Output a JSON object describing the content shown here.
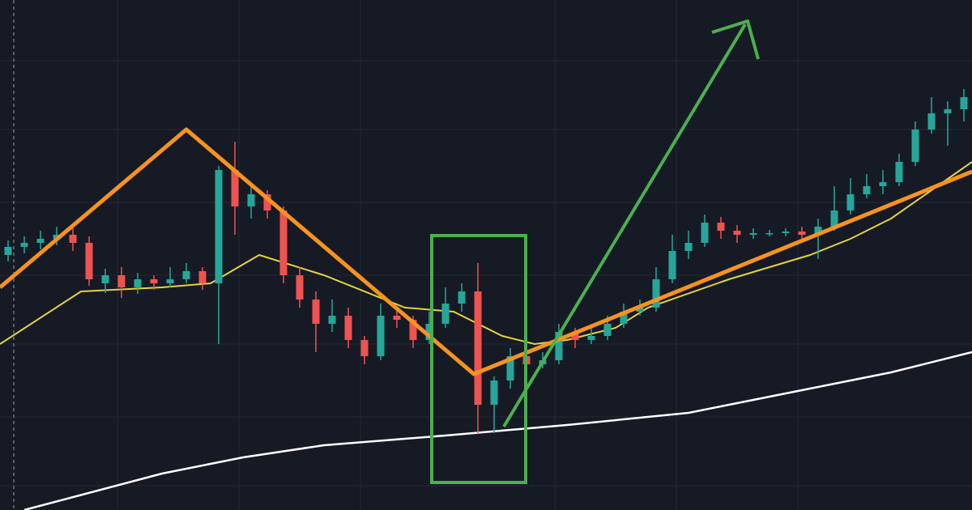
{
  "chart_data": {
    "type": "candlestick",
    "xlim": [
      -0.5,
      59.5
    ],
    "ylim": [
      0,
      630
    ],
    "xticks": [
      6.75,
      14.25,
      21.75,
      33.75,
      41.25,
      48.75
    ],
    "yticks": [
      30,
      115,
      205,
      290,
      380,
      470,
      555
    ],
    "grid": true,
    "up_color": "#26a69a",
    "down_color": "#ef5350",
    "open": [
      315,
      325,
      330,
      335,
      340,
      330,
      280,
      290,
      275,
      285,
      280,
      285,
      295,
      280,
      420,
      375,
      390,
      370,
      290,
      260,
      230,
      240,
      210,
      190,
      240,
      235,
      210,
      230,
      255,
      270,
      130,
      160,
      190,
      180,
      185,
      220,
      210,
      215,
      230,
      245,
      250,
      285,
      320,
      330,
      355,
      345,
      340,
      342,
      342,
      344,
      340,
      350,
      370,
      390,
      400,
      405,
      430,
      470,
      490,
      495
    ],
    "high": [
      333,
      338,
      345,
      350,
      348,
      338,
      298,
      300,
      293,
      290,
      300,
      305,
      300,
      425,
      455,
      400,
      395,
      375,
      300,
      270,
      260,
      250,
      215,
      255,
      250,
      240,
      245,
      275,
      280,
      305,
      165,
      200,
      205,
      195,
      230,
      225,
      225,
      240,
      255,
      260,
      300,
      340,
      345,
      365,
      362,
      352,
      348,
      346,
      348,
      350,
      360,
      400,
      410,
      415,
      420,
      440,
      480,
      510,
      505,
      520
    ],
    "low": [
      307,
      317,
      322,
      327,
      320,
      277,
      268,
      262,
      267,
      272,
      275,
      280,
      272,
      205,
      340,
      360,
      360,
      280,
      250,
      195,
      220,
      200,
      180,
      185,
      225,
      200,
      205,
      225,
      245,
      95,
      95,
      150,
      170,
      175,
      180,
      200,
      205,
      210,
      225,
      240,
      245,
      280,
      310,
      325,
      335,
      330,
      335,
      338,
      338,
      332,
      310,
      345,
      365,
      385,
      390,
      400,
      425,
      465,
      450,
      480
    ],
    "close": [
      325,
      330,
      335,
      340,
      330,
      285,
      290,
      275,
      285,
      280,
      285,
      295,
      280,
      420,
      375,
      390,
      370,
      290,
      260,
      230,
      240,
      210,
      190,
      240,
      235,
      210,
      230,
      255,
      270,
      130,
      160,
      190,
      180,
      185,
      220,
      210,
      215,
      230,
      245,
      250,
      285,
      320,
      330,
      355,
      345,
      340,
      342,
      342,
      344,
      340,
      350,
      370,
      390,
      400,
      405,
      430,
      470,
      490,
      495,
      510
    ],
    "series": [
      {
        "type": "line",
        "color": "#e3d33f",
        "x": [
          -0.5,
          4.5,
          9.5,
          12.5,
          15.5,
          19.5,
          24.5,
          27.5,
          30.5,
          32.5,
          34.5,
          37.5,
          39.5,
          44.5,
          49.5,
          52,
          54.5,
          57,
          59.5
        ],
        "values": [
          205,
          270,
          275,
          280,
          315,
          290,
          250,
          245,
          215,
          205,
          210,
          225,
          250,
          285,
          315,
          335,
          360,
          395,
          430
        ]
      },
      {
        "type": "line",
        "color": "#ffffff",
        "x": [
          1,
          9.5,
          14.5,
          19.5,
          27,
          34.5,
          42,
          49.5,
          54.5,
          59.5
        ],
        "values": [
          0,
          45,
          65,
          80,
          92,
          105,
          120,
          150,
          170,
          195
        ]
      }
    ]
  }
}
